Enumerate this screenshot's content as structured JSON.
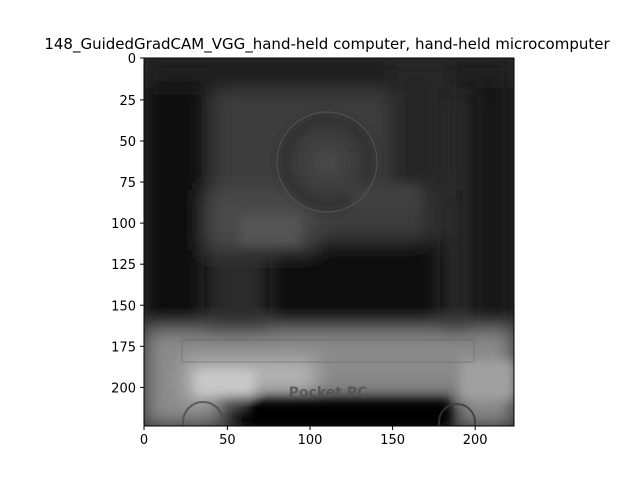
{
  "figure": {
    "title": "148_GuidedGradCAM_VGG_hand-held computer, hand-held microcomputer",
    "colormap": "gray",
    "image_size": [
      224,
      224
    ],
    "x_ticks": [
      "0",
      "50",
      "100",
      "150",
      "200"
    ],
    "y_ticks": [
      "0",
      "25",
      "50",
      "75",
      "100",
      "125",
      "150",
      "175",
      "200"
    ],
    "x_tick_values": [
      0,
      50,
      100,
      150,
      200
    ],
    "y_tick_values": [
      0,
      25,
      50,
      75,
      100,
      125,
      150,
      175,
      200
    ],
    "faint_text_in_image": "Pocket PC"
  }
}
